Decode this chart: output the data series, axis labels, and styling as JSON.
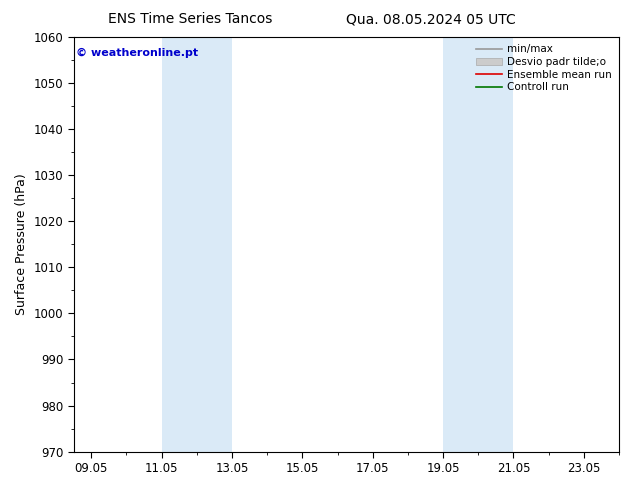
{
  "title": "ENS Time Series Tancos",
  "title2": "Qua. 08.05.2024 05 UTC",
  "ylabel": "Surface Pressure (hPa)",
  "ylim": [
    970,
    1060
  ],
  "yticks": [
    970,
    980,
    990,
    1000,
    1010,
    1020,
    1030,
    1040,
    1050,
    1060
  ],
  "xtick_labels": [
    "09.05",
    "11.05",
    "13.05",
    "15.05",
    "17.05",
    "19.05",
    "21.05",
    "23.05"
  ],
  "xtick_positions": [
    0,
    2,
    4,
    6,
    8,
    10,
    12,
    14
  ],
  "xlim": [
    -0.5,
    15.0
  ],
  "shade_bands": [
    {
      "start": 2,
      "end": 4,
      "color": "#daeaf7"
    },
    {
      "start": 10,
      "end": 12,
      "color": "#daeaf7"
    }
  ],
  "watermark": "© weatheronline.pt",
  "watermark_color": "#0000cc",
  "legend_items": [
    {
      "label": "min/max",
      "color": "#999999",
      "lw": 1.2,
      "type": "line"
    },
    {
      "label": "Desvio padr tilde;o",
      "color": "#cccccc",
      "lw": 6,
      "type": "patch"
    },
    {
      "label": "Ensemble mean run",
      "color": "#dd0000",
      "lw": 1.2,
      "type": "line"
    },
    {
      "label": "Controll run",
      "color": "#007700",
      "lw": 1.2,
      "type": "line"
    }
  ],
  "bg_color": "#ffffff",
  "title_fontsize": 10,
  "axis_label_fontsize": 9,
  "tick_fontsize": 8.5,
  "watermark_fontsize": 8,
  "legend_fontsize": 7.5
}
